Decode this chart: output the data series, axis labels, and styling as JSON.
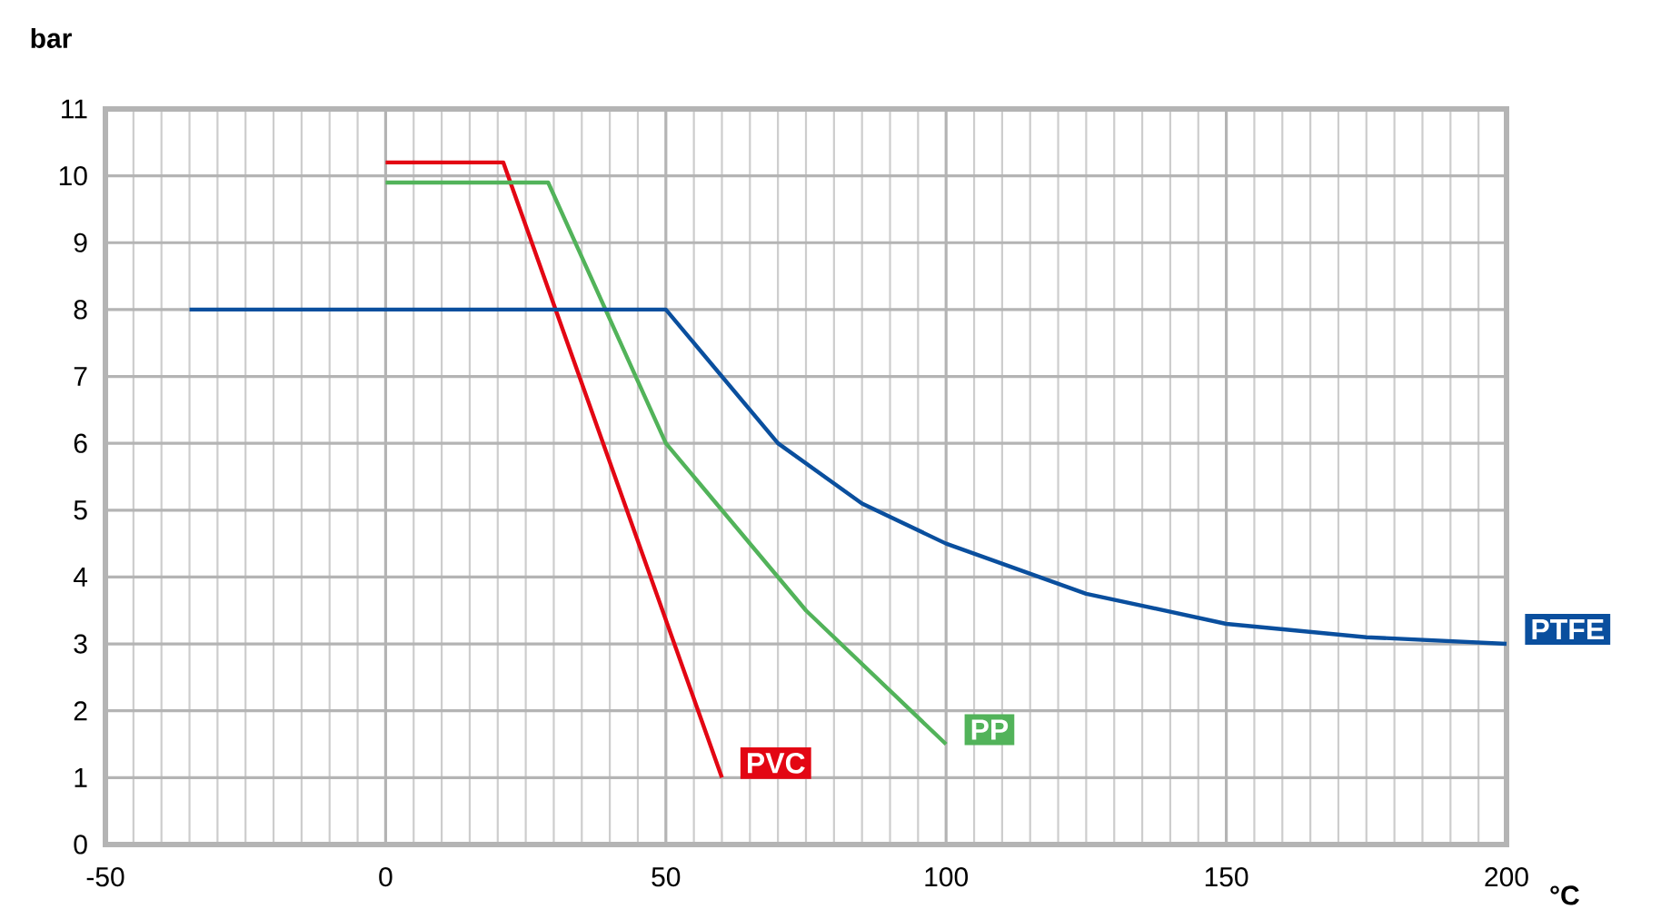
{
  "chart_data": {
    "type": "line",
    "xlabel": "°C",
    "ylabel": "bar",
    "xlim": [
      -50,
      200
    ],
    "ylim": [
      0,
      11
    ],
    "xticks": [
      -50,
      0,
      50,
      100,
      150,
      200
    ],
    "yticks": [
      0,
      1,
      2,
      3,
      4,
      5,
      6,
      7,
      8,
      9,
      10,
      11
    ],
    "grid": true,
    "legend": false,
    "line_style": "solid",
    "series": [
      {
        "name": "PVC",
        "color": "#e30613",
        "x": [
          0,
          21,
          60
        ],
        "values": [
          10.2,
          10.2,
          1
        ]
      },
      {
        "name": "PP",
        "color": "#52b35a",
        "x": [
          0,
          29,
          50,
          75,
          100
        ],
        "values": [
          9.9,
          9.9,
          6,
          3.5,
          1.5
        ]
      },
      {
        "name": "PTFE",
        "color": "#0a4f9e",
        "x": [
          -35,
          50,
          70,
          85,
          100,
          125,
          150,
          175,
          200
        ],
        "values": [
          8,
          8,
          6,
          5.1,
          4.5,
          3.75,
          3.3,
          3.1,
          3
        ]
      }
    ]
  }
}
